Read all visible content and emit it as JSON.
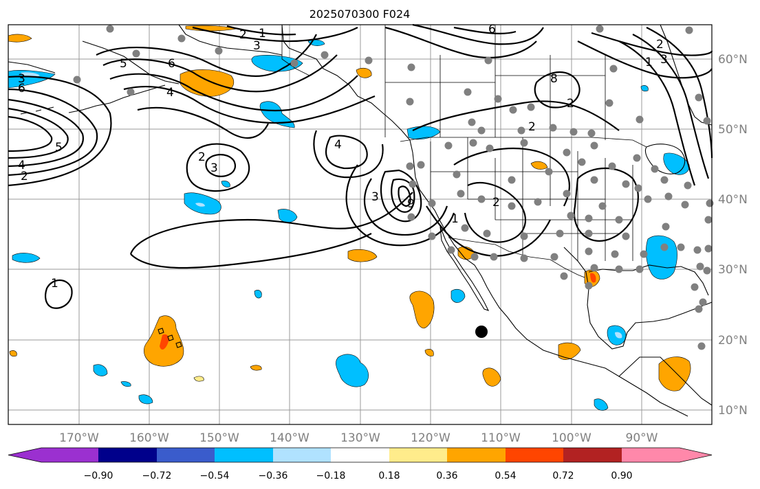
{
  "title": "2025070300 F024",
  "lon_ticks": [
    "170°W",
    "160°W",
    "150°W",
    "140°W",
    "130°W",
    "120°W",
    "110°W",
    "100°W",
    "90°W"
  ],
  "lat_ticks": [
    "60°N",
    "50°N",
    "40°N",
    "30°N",
    "20°N",
    "10°N"
  ],
  "colorbar": {
    "labels": [
      "−0.90",
      "−0.72",
      "−0.54",
      "−0.36",
      "−0.18",
      "0.18",
      "0.36",
      "0.54",
      "0.72",
      "0.90"
    ],
    "colors": [
      "#9b30d0",
      "#00008b",
      "#3a5ccc",
      "#00bfff",
      "#b0e2ff",
      "#ffffff",
      "#ffec8b",
      "#ffa500",
      "#ff4500",
      "#b22222",
      "#ff88aa"
    ]
  },
  "contour_labels": [
    "1",
    "2",
    "3",
    "4",
    "5",
    "6",
    "2",
    "4",
    "3",
    "6",
    "2",
    "1",
    "2",
    "3",
    "2",
    "4",
    "5",
    "3",
    "9",
    "1",
    "2",
    "1",
    "2",
    "3",
    "6",
    "8"
  ],
  "colors": {
    "stations": "#808080",
    "contour": "#000000",
    "marker": "#000000"
  }
}
